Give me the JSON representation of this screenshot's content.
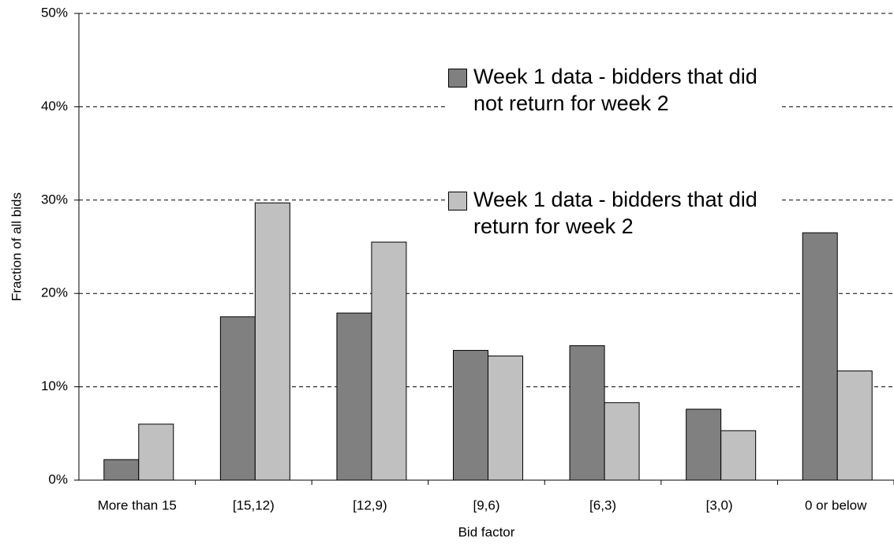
{
  "chart_data": {
    "type": "bar",
    "x_label": "Bid factor",
    "y_label": "Fraction of all bids",
    "categories": [
      "More than 15",
      "[15,12)",
      "[12,9)",
      "[9,6)",
      "[6,3)",
      "[3,0)",
      "0 or below"
    ],
    "series": [
      {
        "name": "Week 1 data - bidders that did not return for week 2",
        "color": "#808080",
        "values": [
          2.2,
          17.5,
          17.9,
          13.9,
          14.4,
          7.6,
          26.5
        ]
      },
      {
        "name": "Week 1 data - bidders that did return for week 2",
        "color": "#c0c0c0",
        "values": [
          6.0,
          29.7,
          25.5,
          13.3,
          8.3,
          5.3,
          11.7
        ]
      }
    ],
    "ylim": [
      0,
      50
    ],
    "yticks": [
      {
        "value": 0,
        "label": "0%"
      },
      {
        "value": 10,
        "label": "10%"
      },
      {
        "value": 20,
        "label": "20%"
      },
      {
        "value": 30,
        "label": "30%"
      },
      {
        "value": 40,
        "label": "40%"
      },
      {
        "value": 50,
        "label": "50%"
      }
    ],
    "grid": true
  }
}
